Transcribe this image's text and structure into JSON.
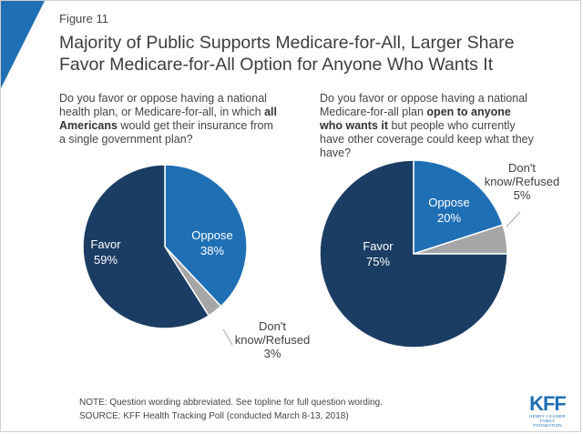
{
  "figure_label": "Figure 11",
  "title_line1": "Majority of Public Supports Medicare-for-All, Larger Share",
  "title_line2": "Favor Medicare-for-All Option for Anyone Who Wants It",
  "colors": {
    "favor": "#1b3d63",
    "oppose": "#1f6fb5",
    "dontknow": "#a6a6a6",
    "accent": "#1f6fb5"
  },
  "chart_data": [
    {
      "type": "pie",
      "question_parts": {
        "before": "Do you favor or oppose having a national health plan, or Medicare-for-all, in which ",
        "bold": "all Americans",
        "after": " would get their insurance from a single government plan?"
      },
      "slices": [
        {
          "label": "Oppose",
          "value": 38,
          "display": "38%"
        },
        {
          "label": "Don't know/Refused",
          "value": 3,
          "display": "3%"
        },
        {
          "label": "Favor",
          "value": 59,
          "display": "59%"
        }
      ]
    },
    {
      "type": "pie",
      "question_parts": {
        "before": "Do you favor or oppose having a national Medicare-for-all plan ",
        "bold": "open to anyone who wants it",
        "after": " but people who currently have other coverage could keep what they have?"
      },
      "slices": [
        {
          "label": "Oppose",
          "value": 20,
          "display": "20%"
        },
        {
          "label": "Don't know/Refused",
          "value": 5,
          "display": "5%"
        },
        {
          "label": "Favor",
          "value": 75,
          "display": "75%"
        }
      ]
    }
  ],
  "labels": {
    "favor": "Favor",
    "oppose": "Oppose",
    "dontknow_line1": "Don't",
    "dontknow_line2": "know/Refused"
  },
  "note": "NOTE: Question wording abbreviated.  See topline for full question wording.",
  "source": "SOURCE: KFF Health Tracking Poll (conducted March 8-13, 2018)",
  "logo": {
    "main": "KFF",
    "sub_line1": "HENRY J KAISER",
    "sub_line2": "FAMILY FOUNDATION"
  }
}
